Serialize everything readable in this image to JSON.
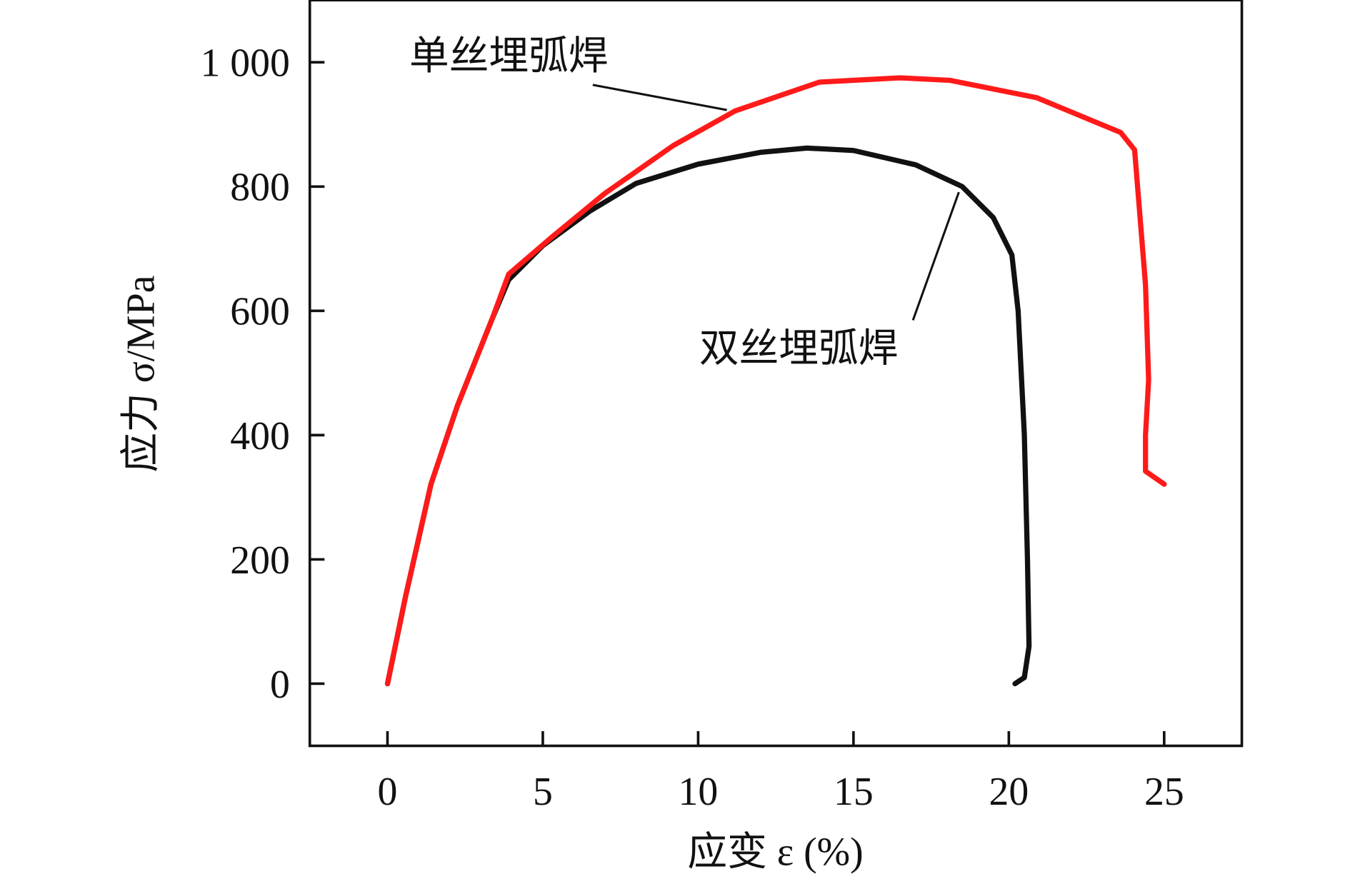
{
  "chart_data": {
    "type": "line",
    "title": "",
    "xlabel": "应变 ε (%)",
    "ylabel": "应力 σ/MPa",
    "xlim": [
      -2.5,
      27.5
    ],
    "ylim": [
      -100,
      1100
    ],
    "xticks": [
      0,
      5,
      10,
      15,
      20,
      25
    ],
    "xtick_labels": [
      "0",
      "5",
      "10",
      "15",
      "20",
      "25"
    ],
    "yticks": [
      0,
      200,
      400,
      600,
      800,
      1000
    ],
    "ytick_labels": [
      "0",
      "200",
      "400",
      "600",
      "800",
      "1 000"
    ],
    "grid": false,
    "series": [
      {
        "name": "单丝埋弧焊",
        "color": "#ff1a1a",
        "x": [
          0,
          0.58,
          1.4,
          2.25,
          3.37,
          3.9,
          5.3,
          7.0,
          9.2,
          11.2,
          13.9,
          16.5,
          18.1,
          20.9,
          23.6,
          24.05,
          24.4,
          24.5,
          24.4,
          24.4,
          25.0
        ],
        "y": [
          0,
          140,
          321,
          447,
          587,
          659,
          719,
          789,
          866,
          922,
          968,
          975,
          971,
          943,
          887,
          859,
          642,
          489,
          400,
          342,
          321
        ]
      },
      {
        "name": "双丝埋弧焊",
        "color": "#111111",
        "x": [
          0,
          0.58,
          1.4,
          2.25,
          3.37,
          3.9,
          5.0,
          6.5,
          8.0,
          10.0,
          12.0,
          13.5,
          15.0,
          17.0,
          18.5,
          19.5,
          20.1,
          20.3,
          20.5,
          20.6,
          20.65,
          20.5,
          20.2
        ],
        "y": [
          0,
          140,
          321,
          447,
          587,
          650,
          705,
          760,
          805,
          836,
          855,
          862,
          858,
          835,
          800,
          750,
          690,
          600,
          400,
          200,
          60,
          10,
          0
        ]
      }
    ],
    "annotations": [
      {
        "text": "单丝埋弧焊",
        "points_to_series": "单丝埋弧焊"
      },
      {
        "text": "双丝埋弧焊",
        "points_to_series": "双丝埋弧焊"
      }
    ]
  }
}
